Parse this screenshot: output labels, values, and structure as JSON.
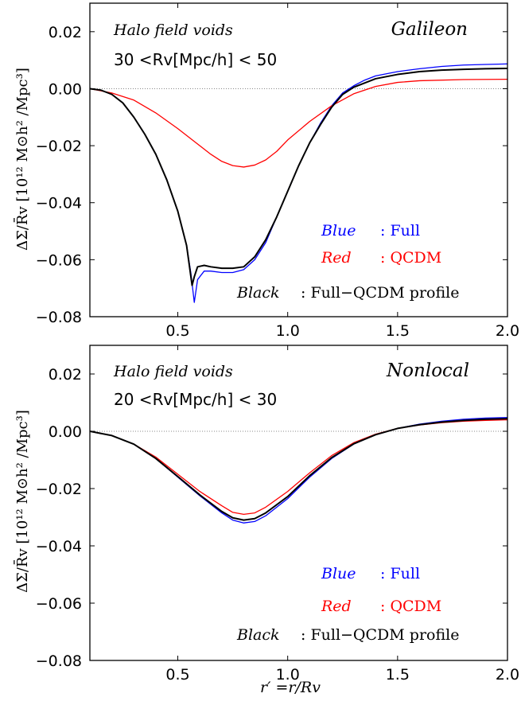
{
  "chart_data": [
    {
      "type": "line",
      "xlim": [
        0.1,
        2.0
      ],
      "ylim": [
        -0.08,
        0.03
      ],
      "x_ticks": [
        {
          "value": 0.5,
          "label": "0.5"
        },
        {
          "value": 1.0,
          "label": "1.0"
        },
        {
          "value": 1.5,
          "label": "1.5"
        },
        {
          "value": 2.0,
          "label": "2.0"
        }
      ],
      "y_ticks": [
        {
          "value": 0.02,
          "label": "0.02"
        },
        {
          "value": 0.0,
          "label": "0.00"
        },
        {
          "value": -0.02,
          "label": "−0.02"
        },
        {
          "value": -0.04,
          "label": "−0.04"
        },
        {
          "value": -0.06,
          "label": "−0.06"
        },
        {
          "value": -0.08,
          "label": "−0.08"
        }
      ],
      "ylabel": "ΔΣ/R̄v [10¹² M⊙h² /Mpc³]",
      "xlabel": "",
      "annotations": {
        "sample": "Halo field voids",
        "radius_range": "30 <Rv[Mpc/h] < 50",
        "model": "Galileon"
      },
      "legend": [
        {
          "key": "Blue",
          "desc": ": Full",
          "color": "#0000ff"
        },
        {
          "key": "Red",
          "desc": ": QCDM",
          "color": "#ff0000"
        },
        {
          "key": "Black",
          "desc": ": Full−QCDM profile",
          "color": "#000000"
        }
      ],
      "legend_position": "lower-right",
      "grid": false,
      "series": [
        {
          "color": "#0000ff",
          "x": [
            0.1,
            0.15,
            0.2,
            0.25,
            0.3,
            0.35,
            0.4,
            0.45,
            0.5,
            0.54,
            0.56,
            0.575,
            0.59,
            0.62,
            0.65,
            0.7,
            0.75,
            0.8,
            0.85,
            0.9,
            0.95,
            1.0,
            1.05,
            1.1,
            1.15,
            1.2,
            1.25,
            1.3,
            1.35,
            1.4,
            1.5,
            1.6,
            1.7,
            1.8,
            1.9,
            2.0
          ],
          "y": [
            0.0,
            -0.0005,
            -0.002,
            -0.005,
            -0.01,
            -0.016,
            -0.023,
            -0.032,
            -0.043,
            -0.055,
            -0.065,
            -0.075,
            -0.067,
            -0.064,
            -0.064,
            -0.0645,
            -0.0645,
            -0.0635,
            -0.06,
            -0.054,
            -0.045,
            -0.036,
            -0.027,
            -0.019,
            -0.012,
            -0.006,
            -0.0015,
            0.001,
            0.003,
            0.0045,
            0.006,
            0.007,
            0.0078,
            0.0083,
            0.0085,
            0.0087
          ]
        },
        {
          "color": "#ff0000",
          "x": [
            0.1,
            0.2,
            0.3,
            0.4,
            0.5,
            0.6,
            0.65,
            0.7,
            0.75,
            0.8,
            0.85,
            0.9,
            0.95,
            1.0,
            1.1,
            1.2,
            1.3,
            1.4,
            1.5,
            1.6,
            1.8,
            2.0
          ],
          "y": [
            0.0,
            -0.0015,
            -0.004,
            -0.0085,
            -0.014,
            -0.02,
            -0.023,
            -0.0255,
            -0.027,
            -0.0275,
            -0.0268,
            -0.025,
            -0.022,
            -0.018,
            -0.0115,
            -0.006,
            -0.0018,
            0.0008,
            0.0022,
            0.0028,
            0.0032,
            0.0033
          ]
        },
        {
          "color": "#000000",
          "x": [
            0.1,
            0.15,
            0.2,
            0.25,
            0.3,
            0.35,
            0.4,
            0.45,
            0.5,
            0.54,
            0.565,
            0.575,
            0.59,
            0.62,
            0.65,
            0.7,
            0.75,
            0.8,
            0.85,
            0.9,
            0.95,
            1.0,
            1.05,
            1.1,
            1.15,
            1.2,
            1.25,
            1.3,
            1.35,
            1.4,
            1.5,
            1.6,
            1.7,
            1.8,
            1.9,
            2.0
          ],
          "y": [
            0.0,
            -0.0005,
            -0.002,
            -0.005,
            -0.01,
            -0.016,
            -0.023,
            -0.032,
            -0.043,
            -0.055,
            -0.069,
            -0.066,
            -0.0625,
            -0.062,
            -0.0625,
            -0.063,
            -0.063,
            -0.0625,
            -0.059,
            -0.053,
            -0.045,
            -0.036,
            -0.027,
            -0.019,
            -0.0125,
            -0.0065,
            -0.002,
            0.0005,
            0.002,
            0.0035,
            0.005,
            0.006,
            0.0065,
            0.0068,
            0.007,
            0.0071
          ]
        }
      ]
    },
    {
      "type": "line",
      "xlim": [
        0.1,
        2.0
      ],
      "ylim": [
        -0.08,
        0.03
      ],
      "x_ticks": [
        {
          "value": 0.5,
          "label": "0.5"
        },
        {
          "value": 1.0,
          "label": "1.0"
        },
        {
          "value": 1.5,
          "label": "1.5"
        },
        {
          "value": 2.0,
          "label": "2.0"
        }
      ],
      "y_ticks": [
        {
          "value": 0.02,
          "label": "0.02"
        },
        {
          "value": 0.0,
          "label": "0.00"
        },
        {
          "value": -0.02,
          "label": "−0.02"
        },
        {
          "value": -0.04,
          "label": "−0.04"
        },
        {
          "value": -0.06,
          "label": "−0.06"
        },
        {
          "value": -0.08,
          "label": "−0.08"
        }
      ],
      "ylabel": "ΔΣ/R̄v [10¹² M⊙h² /Mpc³]",
      "xlabel": "r′ =r/Rv",
      "annotations": {
        "sample": "Halo field voids",
        "radius_range": "20 <Rv[Mpc/h] < 30",
        "model": "Nonlocal"
      },
      "legend": [
        {
          "key": "Blue",
          "desc": ": Full",
          "color": "#0000ff"
        },
        {
          "key": "Red",
          "desc": ": QCDM",
          "color": "#ff0000"
        },
        {
          "key": "Black",
          "desc": ": Full−QCDM profile",
          "color": "#000000"
        }
      ],
      "legend_position": "lower-right",
      "grid": false,
      "series": [
        {
          "color": "#0000ff",
          "x": [
            0.1,
            0.2,
            0.3,
            0.4,
            0.5,
            0.6,
            0.7,
            0.75,
            0.8,
            0.85,
            0.9,
            1.0,
            1.1,
            1.2,
            1.3,
            1.4,
            1.5,
            1.6,
            1.7,
            1.8,
            1.9,
            2.0
          ],
          "y": [
            0.0,
            -0.0015,
            -0.0045,
            -0.0095,
            -0.016,
            -0.0225,
            -0.0285,
            -0.031,
            -0.032,
            -0.0315,
            -0.0295,
            -0.0235,
            -0.016,
            -0.0095,
            -0.0045,
            -0.0012,
            0.001,
            0.0025,
            0.0035,
            0.0042,
            0.0046,
            0.0048
          ]
        },
        {
          "color": "#ff0000",
          "x": [
            0.1,
            0.2,
            0.3,
            0.4,
            0.5,
            0.6,
            0.7,
            0.75,
            0.8,
            0.85,
            0.9,
            1.0,
            1.1,
            1.2,
            1.3,
            1.4,
            1.5,
            1.6,
            1.7,
            1.8,
            1.9,
            2.0
          ],
          "y": [
            0.0,
            -0.0015,
            -0.0045,
            -0.009,
            -0.015,
            -0.021,
            -0.026,
            -0.0283,
            -0.029,
            -0.0285,
            -0.0265,
            -0.021,
            -0.0145,
            -0.0085,
            -0.004,
            -0.001,
            0.001,
            0.0022,
            0.003,
            0.0035,
            0.0038,
            0.004
          ]
        },
        {
          "color": "#000000",
          "x": [
            0.1,
            0.2,
            0.3,
            0.4,
            0.5,
            0.6,
            0.7,
            0.75,
            0.8,
            0.85,
            0.9,
            1.0,
            1.1,
            1.2,
            1.3,
            1.4,
            1.5,
            1.6,
            1.7,
            1.8,
            1.9,
            2.0
          ],
          "y": [
            0.0,
            -0.0015,
            -0.0045,
            -0.0095,
            -0.0158,
            -0.0222,
            -0.028,
            -0.0302,
            -0.031,
            -0.0305,
            -0.0285,
            -0.0228,
            -0.0155,
            -0.0092,
            -0.0044,
            -0.0012,
            0.001,
            0.0023,
            0.0032,
            0.0038,
            0.0042,
            0.0044
          ]
        }
      ]
    }
  ]
}
